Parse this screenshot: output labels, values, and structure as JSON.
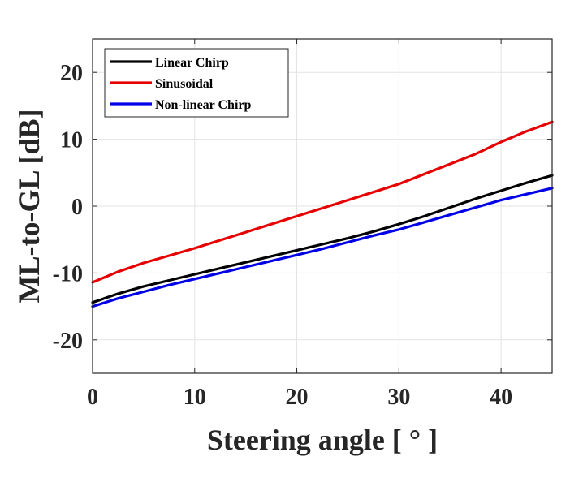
{
  "chart_data": {
    "type": "line",
    "title": "",
    "xlabel": "Steering angle [ ° ]",
    "ylabel": "ML-to-GL [dB]",
    "xlim": [
      0,
      45
    ],
    "ylim": [
      -25,
      25
    ],
    "xticks": [
      0,
      10,
      20,
      30,
      40
    ],
    "yticks": [
      -20,
      -10,
      0,
      10,
      20
    ],
    "xtick_labels": [
      "0",
      "10",
      "20",
      "30",
      "40"
    ],
    "ytick_labels": [
      "-20",
      "-10",
      "0",
      "10",
      "20"
    ],
    "grid": true,
    "legend_position": "top-left",
    "x": [
      0,
      2.5,
      5,
      7.5,
      10,
      12.5,
      15,
      17.5,
      20,
      22.5,
      25,
      27.5,
      30,
      32.5,
      35,
      37.5,
      40,
      42.5,
      45
    ],
    "series": [
      {
        "name": "Linear Chirp",
        "color": "#000000",
        "values": [
          -14.4,
          -13.1,
          -12.0,
          -11.1,
          -10.2,
          -9.3,
          -8.4,
          -7.5,
          -6.6,
          -5.7,
          -4.8,
          -3.8,
          -2.7,
          -1.5,
          -0.2,
          1.1,
          2.3,
          3.5,
          4.6
        ]
      },
      {
        "name": "Sinusoidal",
        "color": "#e60000",
        "values": [
          -11.4,
          -9.8,
          -8.5,
          -7.4,
          -6.3,
          -5.1,
          -3.9,
          -2.7,
          -1.5,
          -0.3,
          0.9,
          2.1,
          3.3,
          4.8,
          6.3,
          7.8,
          9.6,
          11.2,
          12.6
        ]
      },
      {
        "name": "Non-linear Chirp",
        "color": "#0000e6",
        "values": [
          -15.0,
          -13.8,
          -12.8,
          -11.8,
          -10.9,
          -10.0,
          -9.1,
          -8.2,
          -7.3,
          -6.4,
          -5.4,
          -4.4,
          -3.5,
          -2.4,
          -1.3,
          -0.2,
          0.9,
          1.8,
          2.7
        ]
      }
    ]
  }
}
